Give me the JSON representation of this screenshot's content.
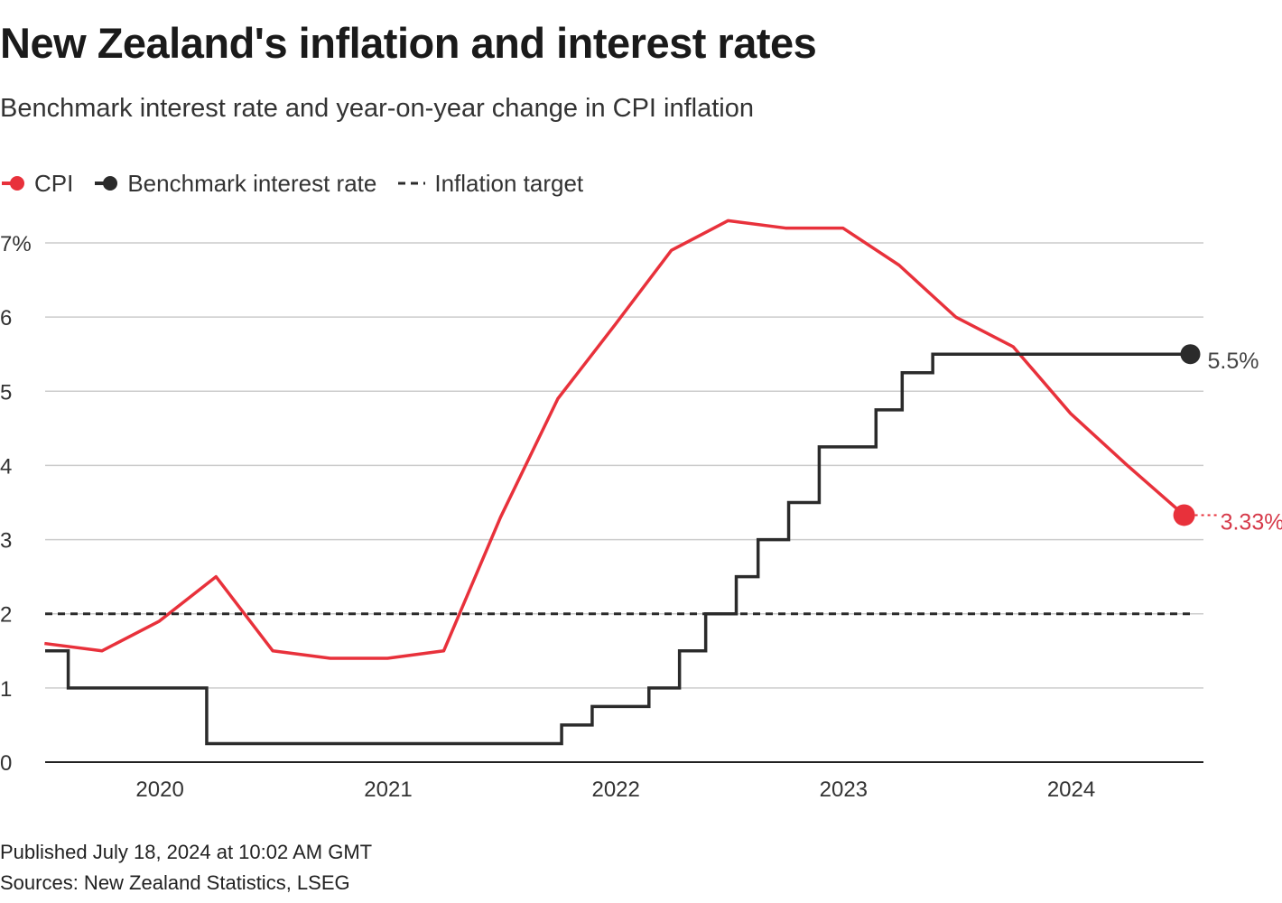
{
  "title": "New Zealand's inflation and interest rates",
  "subtitle": "Benchmark interest rate and year-on-year change in CPI inflation",
  "legend": {
    "cpi": "CPI",
    "rate": "Benchmark interest rate",
    "target": "Inflation target"
  },
  "footer": {
    "published": "Published July 18, 2024 at 10:02 AM GMT",
    "sources": "Sources: New Zealand Statistics, LSEG"
  },
  "colors": {
    "cpi": "#e8313b",
    "rate": "#2b2b2b",
    "target": "#2b2b2b",
    "grid": "#cccccc",
    "cpi_label": "#d63a4a"
  },
  "chart_data": {
    "type": "line",
    "ylim": [
      0,
      7
    ],
    "y_ticks": [
      0,
      1,
      2,
      3,
      4,
      5,
      6,
      7
    ],
    "y_tick_labels": [
      "0",
      "1",
      "2",
      "3",
      "4",
      "5",
      "6",
      "7%"
    ],
    "x_ticks": [
      "2020-01-01",
      "2021-01-01",
      "2022-01-01",
      "2023-01-01",
      "2024-01-01"
    ],
    "x_tick_labels": [
      "2020",
      "2021",
      "2022",
      "2023",
      "2024"
    ],
    "xlim": [
      "2019-07-01",
      "2024-07-31"
    ],
    "grid": true,
    "legend_position": "top-left",
    "series": [
      {
        "name": "CPI",
        "kind": "line",
        "points": [
          [
            "2019-06-30",
            1.6
          ],
          [
            "2019-09-30",
            1.5
          ],
          [
            "2019-12-31",
            1.9
          ],
          [
            "2020-03-31",
            2.5
          ],
          [
            "2020-06-30",
            1.5
          ],
          [
            "2020-09-30",
            1.4
          ],
          [
            "2020-12-31",
            1.4
          ],
          [
            "2021-03-31",
            1.5
          ],
          [
            "2021-06-30",
            3.3
          ],
          [
            "2021-09-30",
            4.9
          ],
          [
            "2021-12-31",
            5.9
          ],
          [
            "2022-03-31",
            6.9
          ],
          [
            "2022-06-30",
            7.3
          ],
          [
            "2022-09-30",
            7.2
          ],
          [
            "2022-12-31",
            7.2
          ],
          [
            "2023-03-31",
            6.7
          ],
          [
            "2023-06-30",
            6.0
          ],
          [
            "2023-09-30",
            5.6
          ],
          [
            "2023-12-31",
            4.7
          ],
          [
            "2024-03-31",
            4.0
          ],
          [
            "2024-06-30",
            3.33
          ]
        ],
        "end_label": "3.33%"
      },
      {
        "name": "Benchmark interest rate",
        "kind": "step",
        "points": [
          [
            "2019-07-01",
            1.5
          ],
          [
            "2019-08-07",
            1.0
          ],
          [
            "2020-03-16",
            0.25
          ],
          [
            "2021-10-06",
            0.5
          ],
          [
            "2021-11-24",
            0.75
          ],
          [
            "2022-02-23",
            1.0
          ],
          [
            "2022-04-13",
            1.5
          ],
          [
            "2022-05-25",
            2.0
          ],
          [
            "2022-07-13",
            2.5
          ],
          [
            "2022-08-17",
            3.0
          ],
          [
            "2022-10-05",
            3.5
          ],
          [
            "2022-11-23",
            4.25
          ],
          [
            "2023-02-22",
            4.75
          ],
          [
            "2023-04-05",
            5.25
          ],
          [
            "2023-05-24",
            5.5
          ],
          [
            "2024-07-10",
            5.5
          ]
        ],
        "end_label": "5.5%"
      },
      {
        "name": "Inflation target",
        "kind": "dashed",
        "points": [
          [
            "2019-07-01",
            2.0
          ],
          [
            "2024-07-10",
            2.0
          ]
        ]
      }
    ]
  }
}
